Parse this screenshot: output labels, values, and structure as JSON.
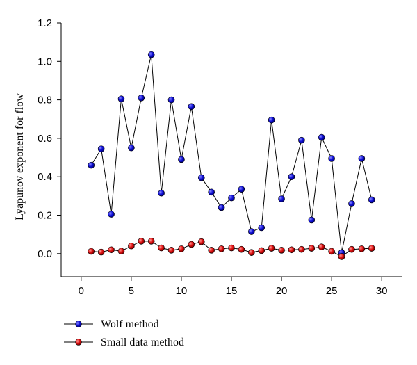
{
  "chart_data": {
    "type": "line",
    "title": "",
    "xlabel": "",
    "ylabel": "Lyapunov exponent for flow",
    "xlim": [
      -2,
      32
    ],
    "ylim": [
      -0.12,
      1.2
    ],
    "xticks": [
      0,
      5,
      10,
      15,
      20,
      25,
      30
    ],
    "yticks": [
      0.0,
      0.2,
      0.4,
      0.6,
      0.8,
      1.0,
      1.2
    ],
    "ytick_labels": [
      "0.0",
      "0.2",
      "0.4",
      "0.6",
      "0.8",
      "1.0",
      "1.2"
    ],
    "legend_position": "bottom-left",
    "x": [
      1,
      2,
      3,
      4,
      5,
      6,
      7,
      8,
      9,
      10,
      11,
      12,
      13,
      14,
      15,
      16,
      17,
      18,
      19,
      20,
      21,
      22,
      23,
      24,
      25,
      26,
      27,
      28,
      29
    ],
    "series": [
      {
        "name": "Wolf method",
        "color": "#1010d8",
        "values": [
          0.46,
          0.545,
          0.205,
          0.805,
          0.55,
          0.81,
          1.035,
          0.315,
          0.8,
          0.49,
          0.765,
          0.395,
          0.32,
          0.24,
          0.29,
          0.335,
          0.115,
          0.135,
          0.695,
          0.285,
          0.4,
          0.59,
          0.175,
          0.605,
          0.495,
          0.005,
          0.26,
          0.495,
          0.28
        ]
      },
      {
        "name": "Small data method",
        "color": "#e01010",
        "values": [
          0.012,
          0.008,
          0.02,
          0.013,
          0.04,
          0.065,
          0.065,
          0.03,
          0.018,
          0.025,
          0.048,
          0.062,
          0.018,
          0.025,
          0.03,
          0.022,
          0.006,
          0.016,
          0.028,
          0.018,
          0.02,
          0.022,
          0.028,
          0.035,
          0.012,
          -0.015,
          0.022,
          0.025,
          0.028
        ]
      }
    ]
  }
}
